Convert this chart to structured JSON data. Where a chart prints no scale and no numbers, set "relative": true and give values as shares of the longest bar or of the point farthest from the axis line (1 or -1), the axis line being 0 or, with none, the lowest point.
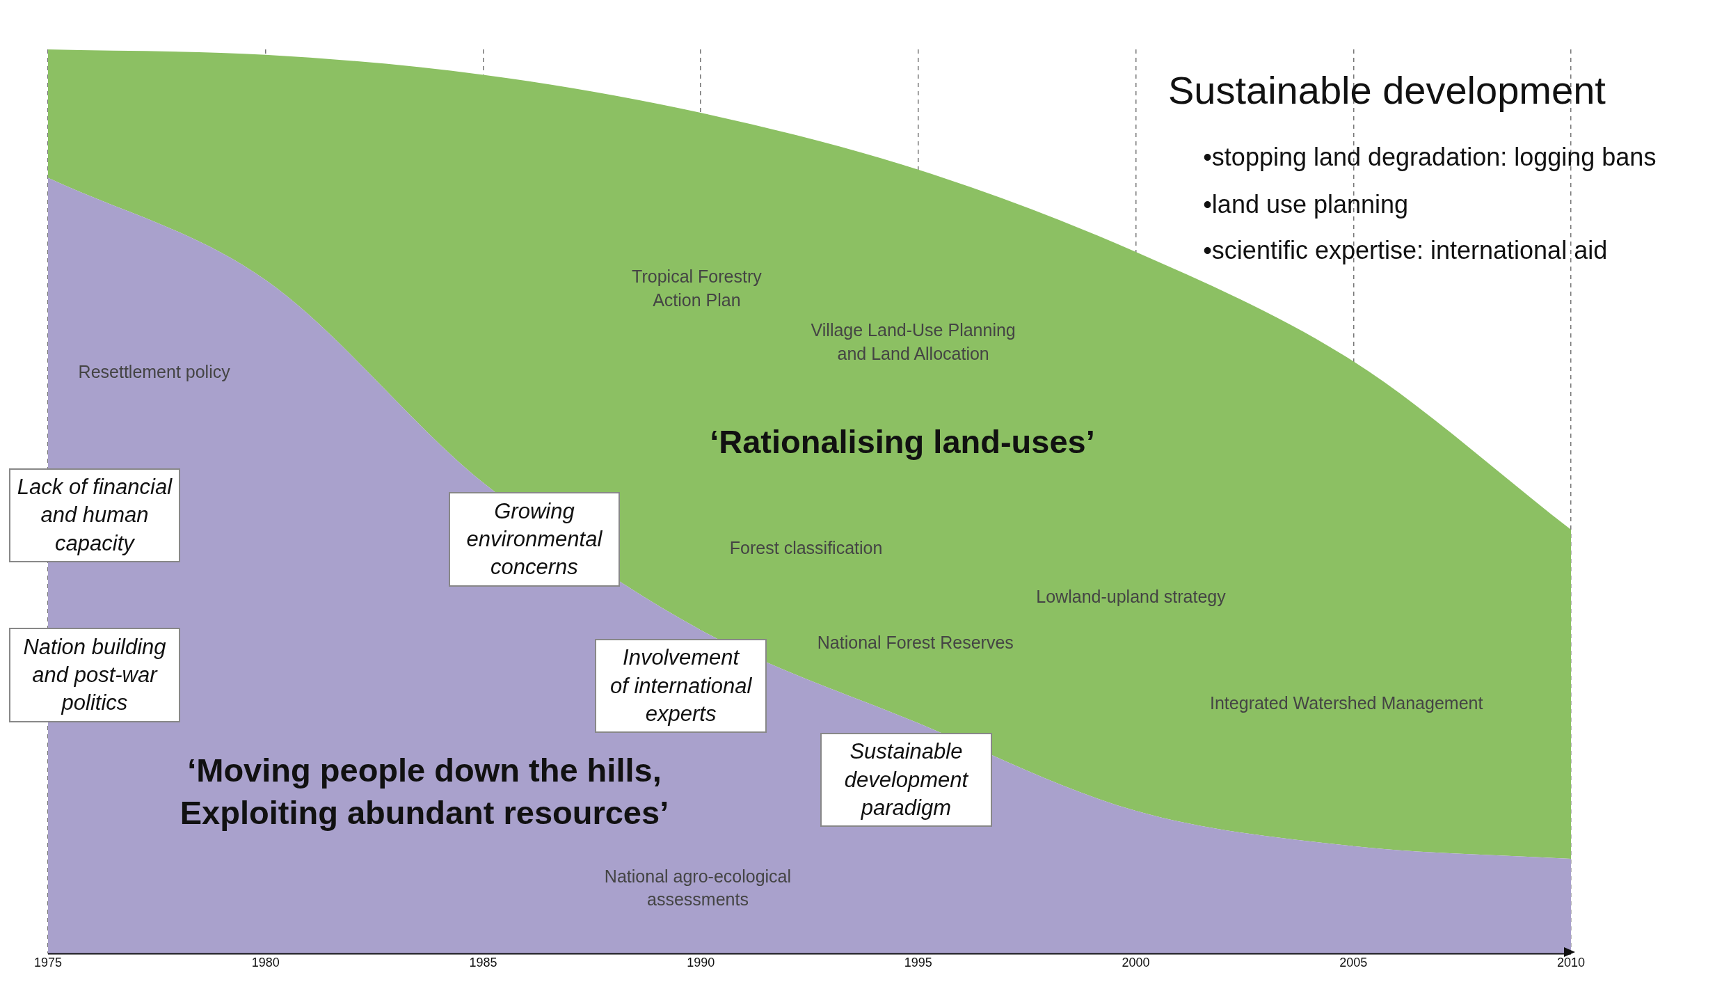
{
  "chart_data": {
    "type": "area",
    "relative": true,
    "stacked": true,
    "legend": false,
    "grid": "x",
    "marker": "none",
    "x": [
      1975,
      1980,
      1985,
      1990,
      1995,
      2000,
      2005,
      2010
    ],
    "xlim": [
      1975,
      2010
    ],
    "xticks": [
      1975,
      1980,
      1985,
      1990,
      1995,
      2000,
      2005,
      2010
    ],
    "series": [
      {
        "color": "#a9a1cc",
        "values": [
          0.858,
          0.745,
          0.521,
          0.358,
          0.255,
          0.158,
          0.119,
          0.105
        ]
      },
      {
        "color": "#8cc063",
        "values": [
          0.142,
          0.249,
          0.451,
          0.572,
          0.612,
          0.618,
          0.536,
          0.364
        ]
      }
    ],
    "annotations": [
      "Sustainable development",
      "•stopping land degradation: logging bans",
      "•land use planning",
      "•scientific expertise: international aid",
      "Tropical Forestry\nAction Plan",
      "Village Land-Use Planning\nand Land Allocation",
      "Resettlement policy",
      "‘Rationalising land-uses’",
      "Forest classification",
      "Lowland-upland strategy",
      "National Forest Reserves",
      "Integrated Watershed Management",
      "‘Moving people down the hills,\nExploiting abundant resources’",
      "National agro-ecological\nassessments",
      "Lack of financial\nand human\ncapacity",
      "Nation building\nand post-war\npolitics",
      "Growing\nenvironmental\nconcerns",
      "Involvement\nof international\nexperts",
      "Sustainable\ndevelopment\nparadigm"
    ]
  }
}
